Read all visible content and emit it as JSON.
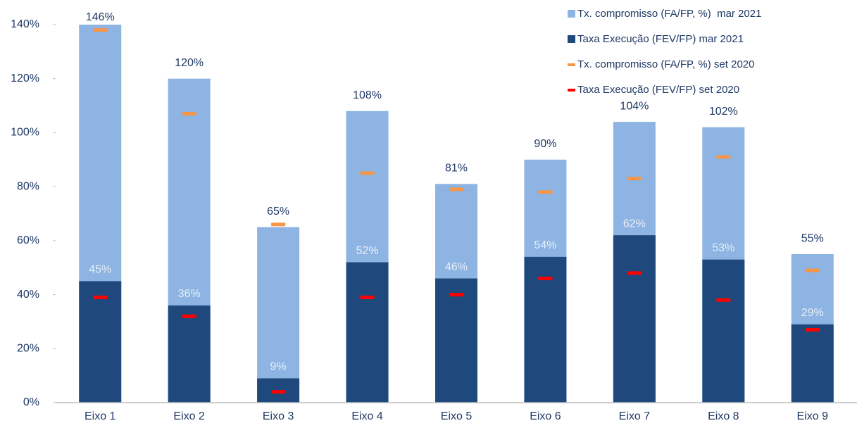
{
  "chart_data": {
    "type": "bar",
    "categories": [
      "Eixo 1",
      "Eixo 2",
      "Eixo 3",
      "Eixo 4",
      "Eixo 5",
      "Eixo 6",
      "Eixo 7",
      "Eixo 8",
      "Eixo 9"
    ],
    "series": [
      {
        "name": "Tx. compromisso (FA/FP, %)  mar 2021",
        "type": "bar",
        "color": "#8db4e2",
        "values": [
          146,
          120,
          65,
          108,
          81,
          90,
          104,
          102,
          55
        ],
        "value_labels": [
          "146%",
          "120%",
          "65%",
          "108%",
          "81%",
          "90%",
          "104%",
          "102%",
          "55%"
        ]
      },
      {
        "name": "Taxa Execução (FEV/FP) mar 2021",
        "type": "bar",
        "color": "#1f497d",
        "values": [
          45,
          36,
          9,
          52,
          46,
          54,
          62,
          53,
          29
        ],
        "value_labels": [
          "45%",
          "36%",
          "9%",
          "52%",
          "46%",
          "54%",
          "62%",
          "53%",
          "29%"
        ]
      },
      {
        "name": "Tx. compromisso (FA/FP, %) set 2020",
        "type": "marker",
        "color": "#f79646",
        "values": [
          138,
          107,
          66,
          85,
          79,
          78,
          83,
          91,
          49
        ]
      },
      {
        "name": "Taxa Execução (FEV/FP) set 2020",
        "type": "marker",
        "color": "#ff0000",
        "values": [
          39,
          32,
          4,
          39,
          40,
          46,
          48,
          38,
          27
        ]
      }
    ],
    "ylim": [
      0,
      140
    ],
    "yticks": [
      {
        "value": 0,
        "label": "0%"
      },
      {
        "value": 20,
        "label": "20%"
      },
      {
        "value": 40,
        "label": "40%"
      },
      {
        "value": 60,
        "label": "60%"
      },
      {
        "value": 80,
        "label": "80%"
      },
      {
        "value": 100,
        "label": "100%"
      },
      {
        "value": 120,
        "label": "120%"
      },
      {
        "value": 140,
        "label": "140%"
      }
    ]
  }
}
